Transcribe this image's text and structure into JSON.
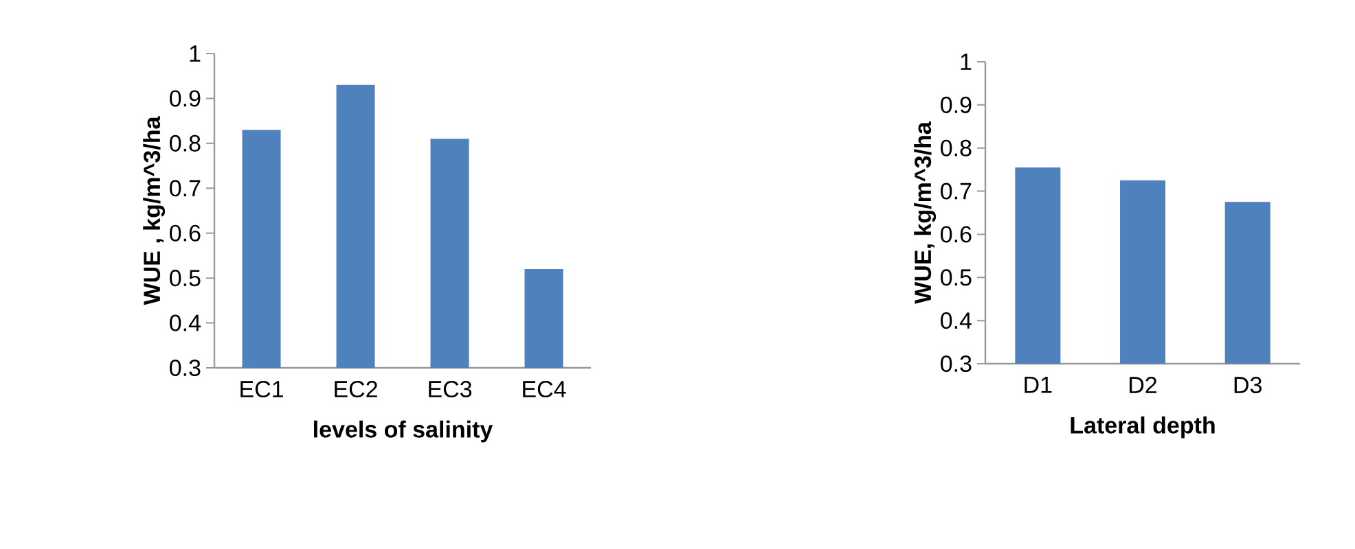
{
  "chart_data": [
    {
      "type": "bar",
      "categories": [
        "EC1",
        "EC2",
        "EC3",
        "EC4"
      ],
      "values": [
        0.83,
        0.93,
        0.81,
        0.52
      ],
      "color": "#4f81bd",
      "xlabel": "levels of salinity",
      "ylabel": "WUE , kg/m^3/ha",
      "ylim": [
        0.3,
        1
      ],
      "yticks": [
        0.3,
        0.4,
        0.5,
        0.6,
        0.7,
        0.8,
        0.9,
        1
      ],
      "grid": false
    },
    {
      "type": "bar",
      "categories": [
        "D1",
        "D2",
        "D3"
      ],
      "values": [
        0.755,
        0.725,
        0.675
      ],
      "color": "#4f81bd",
      "xlabel": "Lateral depth",
      "ylabel": "WUE, kg/m^3/ha",
      "ylim": [
        0.3,
        1
      ],
      "yticks": [
        0.3,
        0.4,
        0.5,
        0.6,
        0.7,
        0.8,
        0.9,
        1
      ],
      "grid": false
    }
  ]
}
